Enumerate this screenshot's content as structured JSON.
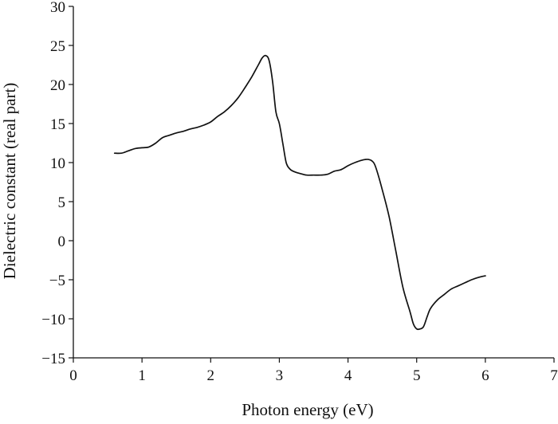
{
  "chart_data": {
    "type": "line",
    "title": "",
    "xlabel": "Photon energy (eV)",
    "ylabel": "Dielectric constant (real part)",
    "xlim": [
      0,
      7
    ],
    "ylim": [
      -15,
      30
    ],
    "xticks": [
      0,
      1,
      2,
      3,
      4,
      5,
      6,
      7
    ],
    "yticks": [
      -15,
      -10,
      -5,
      0,
      5,
      10,
      15,
      20,
      25,
      30
    ],
    "xtick_labels": [
      "0",
      "1",
      "2",
      "3",
      "4",
      "5",
      "6",
      "7"
    ],
    "ytick_labels": [
      "−15",
      "−10",
      "−5",
      "0",
      "5",
      "10",
      "15",
      "20",
      "25",
      "30"
    ],
    "grid": false,
    "legend": "none",
    "series": [
      {
        "color": "#111111",
        "x": [
          0.6,
          0.7,
          0.8,
          0.9,
          1.0,
          1.1,
          1.2,
          1.3,
          1.4,
          1.5,
          1.6,
          1.7,
          1.8,
          1.9,
          2.0,
          2.1,
          2.2,
          2.3,
          2.4,
          2.5,
          2.6,
          2.7,
          2.75,
          2.8,
          2.85,
          2.9,
          2.95,
          3.0,
          3.05,
          3.1,
          3.15,
          3.2,
          3.3,
          3.4,
          3.5,
          3.6,
          3.7,
          3.8,
          3.9,
          4.0,
          4.1,
          4.2,
          4.25,
          4.3,
          4.35,
          4.4,
          4.5,
          4.6,
          4.7,
          4.8,
          4.9,
          4.95,
          5.0,
          5.05,
          5.1,
          5.15,
          5.2,
          5.3,
          5.4,
          5.5,
          5.6,
          5.7,
          5.8,
          5.9,
          6.0
        ],
        "y": [
          11.2,
          11.2,
          11.5,
          11.8,
          11.9,
          12.0,
          12.5,
          13.2,
          13.5,
          13.8,
          14.0,
          14.3,
          14.5,
          14.8,
          15.2,
          15.9,
          16.5,
          17.3,
          18.3,
          19.6,
          21.0,
          22.6,
          23.4,
          23.7,
          23.1,
          20.5,
          16.5,
          15.0,
          12.5,
          10.0,
          9.2,
          8.9,
          8.6,
          8.4,
          8.4,
          8.4,
          8.5,
          8.9,
          9.1,
          9.6,
          10.0,
          10.3,
          10.4,
          10.4,
          10.2,
          9.5,
          6.5,
          3.0,
          -1.5,
          -6.0,
          -9.0,
          -10.6,
          -11.3,
          -11.3,
          -11.0,
          -9.8,
          -8.7,
          -7.6,
          -6.9,
          -6.2,
          -5.8,
          -5.4,
          -5.0,
          -4.7,
          -4.5
        ]
      }
    ]
  }
}
